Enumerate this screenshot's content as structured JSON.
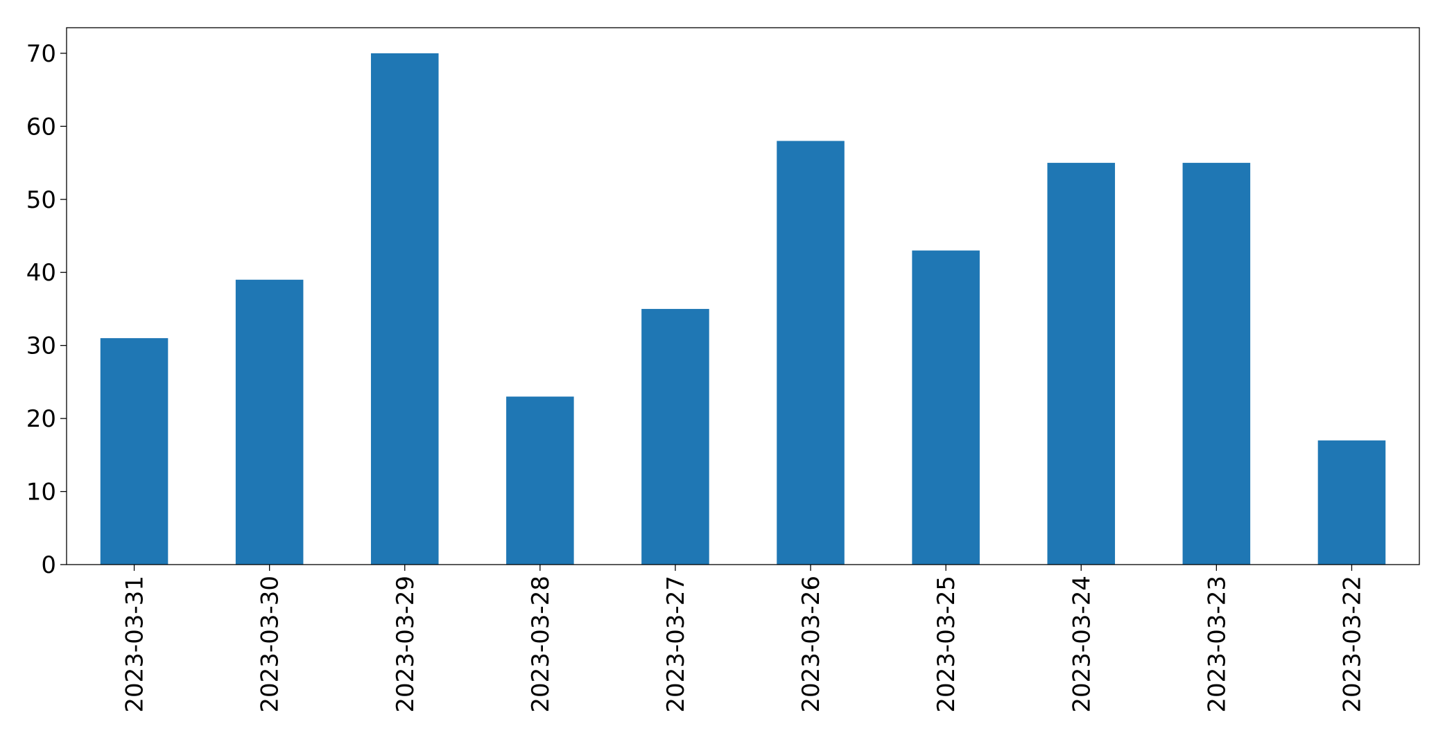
{
  "chart_data": {
    "type": "bar",
    "categories": [
      "2023-03-31",
      "2023-03-30",
      "2023-03-29",
      "2023-03-28",
      "2023-03-27",
      "2023-03-26",
      "2023-03-25",
      "2023-03-24",
      "2023-03-23",
      "2023-03-22"
    ],
    "values": [
      31,
      39,
      70,
      23,
      35,
      58,
      43,
      55,
      55,
      17
    ],
    "color": "#1f77b4",
    "ylim": [
      0,
      73.5
    ],
    "yticks": [
      0,
      10,
      20,
      30,
      40,
      50,
      60,
      70
    ],
    "grid": false
  }
}
